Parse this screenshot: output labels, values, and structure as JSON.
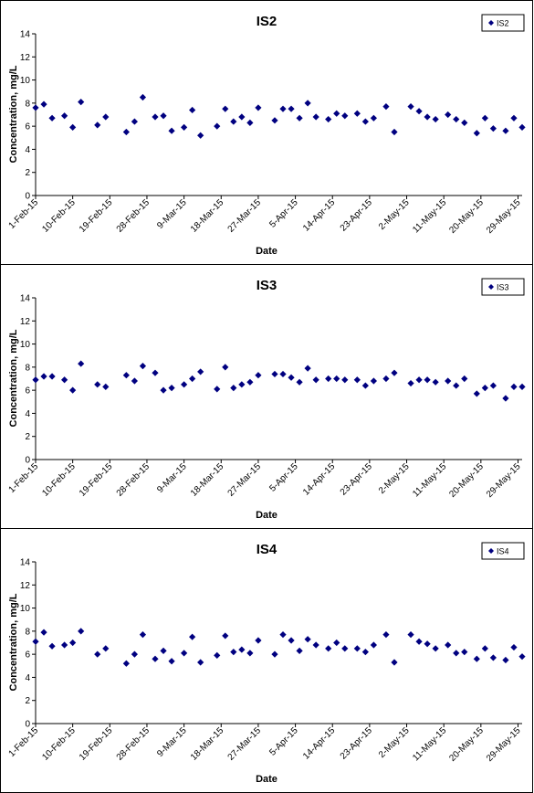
{
  "chart_data": [
    {
      "type": "scatter",
      "title": "IS2",
      "xlabel": "Date",
      "ylabel": "Concentration, mg/L",
      "ylim": [
        0,
        14
      ],
      "yticks": [
        0,
        2,
        4,
        6,
        8,
        10,
        12,
        14
      ],
      "xlim": [
        "2015-02-01",
        "2015-05-30"
      ],
      "xtick_labels": [
        "1-Feb-15",
        "10-Feb-15",
        "19-Feb-15",
        "28-Feb-15",
        "9-Mar-15",
        "18-Mar-15",
        "27-Mar-15",
        "5-Apr-15",
        "14-Apr-15",
        "23-Apr-15",
        "2-May-15",
        "11-May-15",
        "20-May-15",
        "29-May-15"
      ],
      "xtick_dates": [
        "2015-02-01",
        "2015-02-10",
        "2015-02-19",
        "2015-02-28",
        "2015-03-09",
        "2015-03-18",
        "2015-03-27",
        "2015-04-05",
        "2015-04-14",
        "2015-04-23",
        "2015-05-02",
        "2015-05-11",
        "2015-05-20",
        "2015-05-29"
      ],
      "legend_position": "top-right",
      "grid": false,
      "series": [
        {
          "name": "IS2",
          "color": "#000080",
          "marker": "diamond",
          "points": [
            [
              "2015-02-01",
              7.6
            ],
            [
              "2015-02-03",
              7.9
            ],
            [
              "2015-02-05",
              6.7
            ],
            [
              "2015-02-08",
              6.9
            ],
            [
              "2015-02-10",
              5.9
            ],
            [
              "2015-02-12",
              8.1
            ],
            [
              "2015-02-16",
              6.1
            ],
            [
              "2015-02-18",
              6.8
            ],
            [
              "2015-02-23",
              5.5
            ],
            [
              "2015-02-25",
              6.4
            ],
            [
              "2015-02-27",
              8.5
            ],
            [
              "2015-03-02",
              6.8
            ],
            [
              "2015-03-04",
              6.9
            ],
            [
              "2015-03-06",
              5.6
            ],
            [
              "2015-03-09",
              5.9
            ],
            [
              "2015-03-11",
              7.4
            ],
            [
              "2015-03-13",
              5.2
            ],
            [
              "2015-03-17",
              6.0
            ],
            [
              "2015-03-19",
              7.5
            ],
            [
              "2015-03-21",
              6.4
            ],
            [
              "2015-03-23",
              6.8
            ],
            [
              "2015-03-25",
              6.3
            ],
            [
              "2015-03-27",
              7.6
            ],
            [
              "2015-03-31",
              6.5
            ],
            [
              "2015-04-02",
              7.5
            ],
            [
              "2015-04-04",
              7.5
            ],
            [
              "2015-04-06",
              6.7
            ],
            [
              "2015-04-08",
              8.0
            ],
            [
              "2015-04-10",
              6.8
            ],
            [
              "2015-04-13",
              6.6
            ],
            [
              "2015-04-15",
              7.1
            ],
            [
              "2015-04-17",
              6.9
            ],
            [
              "2015-04-20",
              7.1
            ],
            [
              "2015-04-22",
              6.4
            ],
            [
              "2015-04-24",
              6.7
            ],
            [
              "2015-04-27",
              7.7
            ],
            [
              "2015-04-29",
              5.5
            ],
            [
              "2015-05-03",
              7.7
            ],
            [
              "2015-05-05",
              7.3
            ],
            [
              "2015-05-07",
              6.8
            ],
            [
              "2015-05-09",
              6.6
            ],
            [
              "2015-05-12",
              7.0
            ],
            [
              "2015-05-14",
              6.6
            ],
            [
              "2015-05-16",
              6.3
            ],
            [
              "2015-05-19",
              5.4
            ],
            [
              "2015-05-21",
              6.7
            ],
            [
              "2015-05-23",
              5.8
            ],
            [
              "2015-05-26",
              5.6
            ],
            [
              "2015-05-28",
              6.7
            ],
            [
              "2015-05-30",
              5.9
            ]
          ]
        }
      ]
    },
    {
      "type": "scatter",
      "title": "IS3",
      "xlabel": "Date",
      "ylabel": "Concentration, mg/L",
      "ylim": [
        0,
        14
      ],
      "yticks": [
        0,
        2,
        4,
        6,
        8,
        10,
        12,
        14
      ],
      "xlim": [
        "2015-02-01",
        "2015-05-30"
      ],
      "xtick_labels": [
        "1-Feb-15",
        "10-Feb-15",
        "19-Feb-15",
        "28-Feb-15",
        "9-Mar-15",
        "18-Mar-15",
        "27-Mar-15",
        "5-Apr-15",
        "14-Apr-15",
        "23-Apr-15",
        "2-May-15",
        "11-May-15",
        "20-May-15",
        "29-May-15"
      ],
      "xtick_dates": [
        "2015-02-01",
        "2015-02-10",
        "2015-02-19",
        "2015-02-28",
        "2015-03-09",
        "2015-03-18",
        "2015-03-27",
        "2015-04-05",
        "2015-04-14",
        "2015-04-23",
        "2015-05-02",
        "2015-05-11",
        "2015-05-20",
        "2015-05-29"
      ],
      "legend_position": "top-right",
      "grid": false,
      "series": [
        {
          "name": "IS3",
          "color": "#000080",
          "marker": "diamond",
          "points": [
            [
              "2015-02-01",
              6.9
            ],
            [
              "2015-02-03",
              7.2
            ],
            [
              "2015-02-05",
              7.2
            ],
            [
              "2015-02-08",
              6.9
            ],
            [
              "2015-02-10",
              6.0
            ],
            [
              "2015-02-12",
              8.3
            ],
            [
              "2015-02-16",
              6.5
            ],
            [
              "2015-02-18",
              6.3
            ],
            [
              "2015-02-23",
              7.3
            ],
            [
              "2015-02-25",
              6.8
            ],
            [
              "2015-02-27",
              8.1
            ],
            [
              "2015-03-02",
              7.5
            ],
            [
              "2015-03-04",
              6.0
            ],
            [
              "2015-03-06",
              6.2
            ],
            [
              "2015-03-09",
              6.5
            ],
            [
              "2015-03-11",
              7.0
            ],
            [
              "2015-03-13",
              7.6
            ],
            [
              "2015-03-17",
              6.1
            ],
            [
              "2015-03-19",
              8.0
            ],
            [
              "2015-03-21",
              6.2
            ],
            [
              "2015-03-23",
              6.5
            ],
            [
              "2015-03-25",
              6.7
            ],
            [
              "2015-03-27",
              7.3
            ],
            [
              "2015-03-31",
              7.4
            ],
            [
              "2015-04-02",
              7.4
            ],
            [
              "2015-04-04",
              7.1
            ],
            [
              "2015-04-06",
              6.7
            ],
            [
              "2015-04-08",
              7.9
            ],
            [
              "2015-04-10",
              6.9
            ],
            [
              "2015-04-13",
              7.0
            ],
            [
              "2015-04-15",
              7.0
            ],
            [
              "2015-04-17",
              6.9
            ],
            [
              "2015-04-20",
              6.9
            ],
            [
              "2015-04-22",
              6.4
            ],
            [
              "2015-04-24",
              6.8
            ],
            [
              "2015-04-27",
              7.0
            ],
            [
              "2015-04-29",
              7.5
            ],
            [
              "2015-05-03",
              6.6
            ],
            [
              "2015-05-05",
              6.9
            ],
            [
              "2015-05-07",
              6.9
            ],
            [
              "2015-05-09",
              6.7
            ],
            [
              "2015-05-12",
              6.8
            ],
            [
              "2015-05-14",
              6.4
            ],
            [
              "2015-05-16",
              7.0
            ],
            [
              "2015-05-19",
              5.7
            ],
            [
              "2015-05-21",
              6.2
            ],
            [
              "2015-05-23",
              6.4
            ],
            [
              "2015-05-26",
              5.3
            ],
            [
              "2015-05-28",
              6.3
            ],
            [
              "2015-05-30",
              6.3
            ]
          ]
        }
      ]
    },
    {
      "type": "scatter",
      "title": "IS4",
      "xlabel": "Date",
      "ylabel": "Concentration, mg/L",
      "ylim": [
        0,
        14
      ],
      "yticks": [
        0,
        2,
        4,
        6,
        8,
        10,
        12,
        14
      ],
      "xlim": [
        "2015-02-01",
        "2015-05-30"
      ],
      "xtick_labels": [
        "1-Feb-15",
        "10-Feb-15",
        "19-Feb-15",
        "28-Feb-15",
        "9-Mar-15",
        "18-Mar-15",
        "27-Mar-15",
        "5-Apr-15",
        "14-Apr-15",
        "23-Apr-15",
        "2-May-15",
        "11-May-15",
        "20-May-15",
        "29-May-15"
      ],
      "xtick_dates": [
        "2015-02-01",
        "2015-02-10",
        "2015-02-19",
        "2015-02-28",
        "2015-03-09",
        "2015-03-18",
        "2015-03-27",
        "2015-04-05",
        "2015-04-14",
        "2015-04-23",
        "2015-05-02",
        "2015-05-11",
        "2015-05-20",
        "2015-05-29"
      ],
      "legend_position": "top-right",
      "grid": false,
      "series": [
        {
          "name": "IS4",
          "color": "#000080",
          "marker": "diamond",
          "points": [
            [
              "2015-02-01",
              7.1
            ],
            [
              "2015-02-03",
              7.9
            ],
            [
              "2015-02-05",
              6.7
            ],
            [
              "2015-02-08",
              6.8
            ],
            [
              "2015-02-10",
              7.0
            ],
            [
              "2015-02-12",
              8.0
            ],
            [
              "2015-02-16",
              6.0
            ],
            [
              "2015-02-18",
              6.5
            ],
            [
              "2015-02-23",
              5.2
            ],
            [
              "2015-02-25",
              6.0
            ],
            [
              "2015-02-27",
              7.7
            ],
            [
              "2015-03-02",
              5.6
            ],
            [
              "2015-03-04",
              6.3
            ],
            [
              "2015-03-06",
              5.4
            ],
            [
              "2015-03-09",
              6.1
            ],
            [
              "2015-03-11",
              7.5
            ],
            [
              "2015-03-13",
              5.3
            ],
            [
              "2015-03-17",
              5.9
            ],
            [
              "2015-03-19",
              7.6
            ],
            [
              "2015-03-21",
              6.2
            ],
            [
              "2015-03-23",
              6.4
            ],
            [
              "2015-03-25",
              6.1
            ],
            [
              "2015-03-27",
              7.2
            ],
            [
              "2015-03-31",
              6.0
            ],
            [
              "2015-04-02",
              7.7
            ],
            [
              "2015-04-04",
              7.2
            ],
            [
              "2015-04-06",
              6.3
            ],
            [
              "2015-04-08",
              7.3
            ],
            [
              "2015-04-10",
              6.8
            ],
            [
              "2015-04-13",
              6.5
            ],
            [
              "2015-04-15",
              7.0
            ],
            [
              "2015-04-17",
              6.5
            ],
            [
              "2015-04-20",
              6.5
            ],
            [
              "2015-04-22",
              6.2
            ],
            [
              "2015-04-24",
              6.8
            ],
            [
              "2015-04-27",
              7.7
            ],
            [
              "2015-04-29",
              5.3
            ],
            [
              "2015-05-03",
              7.7
            ],
            [
              "2015-05-05",
              7.1
            ],
            [
              "2015-05-07",
              6.9
            ],
            [
              "2015-05-09",
              6.5
            ],
            [
              "2015-05-12",
              6.8
            ],
            [
              "2015-05-14",
              6.1
            ],
            [
              "2015-05-16",
              6.2
            ],
            [
              "2015-05-19",
              5.6
            ],
            [
              "2015-05-21",
              6.5
            ],
            [
              "2015-05-23",
              5.7
            ],
            [
              "2015-05-26",
              5.5
            ],
            [
              "2015-05-28",
              6.6
            ],
            [
              "2015-05-30",
              5.8
            ]
          ]
        }
      ]
    }
  ]
}
